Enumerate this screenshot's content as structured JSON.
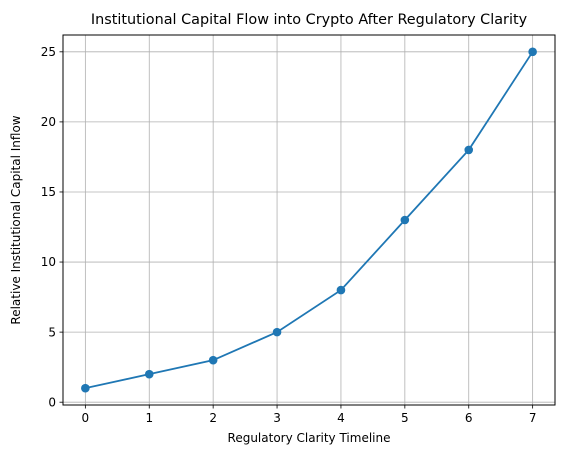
{
  "chart_data": {
    "type": "line",
    "title": "Institutional Capital Flow into Crypto After Regulatory Clarity",
    "xlabel": "Regulatory Clarity Timeline",
    "ylabel": "Relative Institutional Capital Inflow",
    "x": [
      0,
      1,
      2,
      3,
      4,
      5,
      6,
      7
    ],
    "series": [
      {
        "values": [
          1,
          2,
          3,
          5,
          8,
          13,
          18,
          25
        ],
        "color": "#1f77b4",
        "marker": "circle"
      }
    ],
    "xlim": [
      -0.35,
      7.35
    ],
    "ylim": [
      -0.2,
      26.2
    ],
    "xticks": [
      0,
      1,
      2,
      3,
      4,
      5,
      6,
      7
    ],
    "yticks": [
      0,
      5,
      10,
      15,
      20,
      25
    ],
    "grid": true,
    "legend": "none"
  }
}
